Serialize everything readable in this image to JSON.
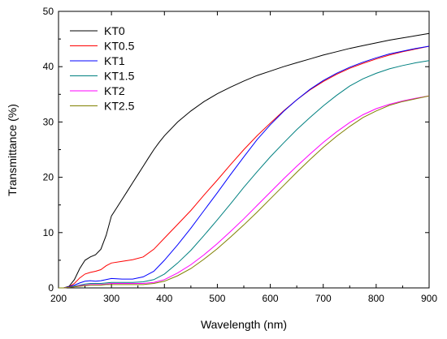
{
  "chart_data": {
    "type": "line",
    "xlabel": "Wavelength (nm)",
    "ylabel": "Transmittance (%)",
    "xlim": [
      200,
      900
    ],
    "ylim": [
      0,
      50
    ],
    "x_ticks": [
      200,
      300,
      400,
      500,
      600,
      700,
      800,
      900
    ],
    "y_ticks": [
      0,
      10,
      20,
      30,
      40,
      50
    ],
    "grid": false,
    "legend_position": "top-left",
    "series": [
      {
        "name": "KT0",
        "color": "#000000",
        "points": [
          [
            200,
            0
          ],
          [
            210,
            0
          ],
          [
            220,
            0.3
          ],
          [
            230,
            1.5
          ],
          [
            240,
            3.5
          ],
          [
            250,
            5.0
          ],
          [
            260,
            5.6
          ],
          [
            270,
            6.0
          ],
          [
            280,
            7.0
          ],
          [
            290,
            9.5
          ],
          [
            300,
            13.0
          ],
          [
            310,
            14.5
          ],
          [
            320,
            16.0
          ],
          [
            330,
            17.5
          ],
          [
            340,
            19.0
          ],
          [
            350,
            20.5
          ],
          [
            360,
            22.0
          ],
          [
            370,
            23.5
          ],
          [
            380,
            25.0
          ],
          [
            390,
            26.3
          ],
          [
            400,
            27.5
          ],
          [
            425,
            30.0
          ],
          [
            450,
            32.0
          ],
          [
            475,
            33.7
          ],
          [
            500,
            35.1
          ],
          [
            525,
            36.3
          ],
          [
            550,
            37.4
          ],
          [
            575,
            38.4
          ],
          [
            600,
            39.2
          ],
          [
            625,
            40.0
          ],
          [
            650,
            40.7
          ],
          [
            675,
            41.4
          ],
          [
            700,
            42.1
          ],
          [
            725,
            42.7
          ],
          [
            750,
            43.3
          ],
          [
            775,
            43.8
          ],
          [
            800,
            44.3
          ],
          [
            825,
            44.8
          ],
          [
            850,
            45.2
          ],
          [
            875,
            45.6
          ],
          [
            900,
            46.0
          ]
        ]
      },
      {
        "name": "KT0.5",
        "color": "#ff0000",
        "points": [
          [
            200,
            0
          ],
          [
            210,
            0
          ],
          [
            220,
            0.2
          ],
          [
            230,
            0.8
          ],
          [
            240,
            1.8
          ],
          [
            250,
            2.5
          ],
          [
            260,
            2.8
          ],
          [
            270,
            3.0
          ],
          [
            280,
            3.3
          ],
          [
            290,
            4.0
          ],
          [
            300,
            4.5
          ],
          [
            320,
            4.8
          ],
          [
            340,
            5.1
          ],
          [
            360,
            5.6
          ],
          [
            380,
            7.0
          ],
          [
            400,
            9.0
          ],
          [
            425,
            11.5
          ],
          [
            450,
            14.0
          ],
          [
            475,
            16.8
          ],
          [
            500,
            19.5
          ],
          [
            525,
            22.3
          ],
          [
            550,
            25.0
          ],
          [
            575,
            27.5
          ],
          [
            600,
            29.8
          ],
          [
            625,
            32.0
          ],
          [
            650,
            34.0
          ],
          [
            675,
            35.8
          ],
          [
            700,
            37.3
          ],
          [
            725,
            38.6
          ],
          [
            750,
            39.7
          ],
          [
            775,
            40.6
          ],
          [
            800,
            41.4
          ],
          [
            825,
            42.1
          ],
          [
            850,
            42.7
          ],
          [
            875,
            43.2
          ],
          [
            900,
            43.7
          ]
        ]
      },
      {
        "name": "KT1",
        "color": "#0000ff",
        "points": [
          [
            200,
            0
          ],
          [
            210,
            0
          ],
          [
            220,
            0.2
          ],
          [
            230,
            0.5
          ],
          [
            240,
            0.9
          ],
          [
            250,
            1.2
          ],
          [
            260,
            1.3
          ],
          [
            270,
            1.2
          ],
          [
            280,
            1.3
          ],
          [
            290,
            1.5
          ],
          [
            300,
            1.7
          ],
          [
            320,
            1.6
          ],
          [
            340,
            1.6
          ],
          [
            360,
            2.0
          ],
          [
            380,
            3.0
          ],
          [
            400,
            5.0
          ],
          [
            425,
            7.8
          ],
          [
            450,
            10.8
          ],
          [
            475,
            14.0
          ],
          [
            500,
            17.2
          ],
          [
            525,
            20.5
          ],
          [
            550,
            23.7
          ],
          [
            575,
            26.8
          ],
          [
            600,
            29.5
          ],
          [
            625,
            31.9
          ],
          [
            650,
            34.0
          ],
          [
            675,
            35.9
          ],
          [
            700,
            37.5
          ],
          [
            725,
            38.8
          ],
          [
            750,
            39.9
          ],
          [
            775,
            40.8
          ],
          [
            800,
            41.6
          ],
          [
            825,
            42.3
          ],
          [
            850,
            42.8
          ],
          [
            875,
            43.3
          ],
          [
            900,
            43.7
          ]
        ]
      },
      {
        "name": "KT1.5",
        "color": "#008080",
        "points": [
          [
            200,
            0
          ],
          [
            210,
            0
          ],
          [
            220,
            0.1
          ],
          [
            230,
            0.3
          ],
          [
            240,
            0.5
          ],
          [
            250,
            0.7
          ],
          [
            260,
            0.8
          ],
          [
            270,
            0.8
          ],
          [
            280,
            0.8
          ],
          [
            290,
            0.9
          ],
          [
            300,
            1.0
          ],
          [
            320,
            1.0
          ],
          [
            340,
            1.0
          ],
          [
            360,
            1.1
          ],
          [
            380,
            1.5
          ],
          [
            400,
            2.5
          ],
          [
            425,
            4.5
          ],
          [
            450,
            6.8
          ],
          [
            475,
            9.5
          ],
          [
            500,
            12.3
          ],
          [
            525,
            15.2
          ],
          [
            550,
            18.2
          ],
          [
            575,
            21.0
          ],
          [
            600,
            23.7
          ],
          [
            625,
            26.2
          ],
          [
            650,
            28.6
          ],
          [
            675,
            30.8
          ],
          [
            700,
            32.9
          ],
          [
            725,
            34.8
          ],
          [
            750,
            36.5
          ],
          [
            775,
            37.8
          ],
          [
            800,
            38.8
          ],
          [
            825,
            39.6
          ],
          [
            850,
            40.2
          ],
          [
            875,
            40.7
          ],
          [
            900,
            41.1
          ]
        ]
      },
      {
        "name": "KT2",
        "color": "#ff00ff",
        "points": [
          [
            200,
            0
          ],
          [
            210,
            0
          ],
          [
            220,
            0.1
          ],
          [
            230,
            0.2
          ],
          [
            240,
            0.4
          ],
          [
            250,
            0.5
          ],
          [
            260,
            0.6
          ],
          [
            270,
            0.6
          ],
          [
            280,
            0.6
          ],
          [
            290,
            0.7
          ],
          [
            300,
            0.8
          ],
          [
            320,
            0.8
          ],
          [
            340,
            0.8
          ],
          [
            360,
            0.8
          ],
          [
            380,
            1.0
          ],
          [
            400,
            1.5
          ],
          [
            425,
            2.7
          ],
          [
            450,
            4.2
          ],
          [
            475,
            6.0
          ],
          [
            500,
            8.0
          ],
          [
            525,
            10.2
          ],
          [
            550,
            12.5
          ],
          [
            575,
            14.9
          ],
          [
            600,
            17.3
          ],
          [
            625,
            19.7
          ],
          [
            650,
            22.0
          ],
          [
            675,
            24.2
          ],
          [
            700,
            26.3
          ],
          [
            725,
            28.2
          ],
          [
            750,
            29.9
          ],
          [
            775,
            31.3
          ],
          [
            800,
            32.4
          ],
          [
            825,
            33.2
          ],
          [
            850,
            33.8
          ],
          [
            875,
            34.3
          ],
          [
            900,
            34.7
          ]
        ]
      },
      {
        "name": "KT2.5",
        "color": "#808000",
        "points": [
          [
            200,
            0
          ],
          [
            210,
            0
          ],
          [
            220,
            0.1
          ],
          [
            230,
            0.2
          ],
          [
            240,
            0.3
          ],
          [
            250,
            0.4
          ],
          [
            260,
            0.5
          ],
          [
            270,
            0.5
          ],
          [
            280,
            0.5
          ],
          [
            290,
            0.6
          ],
          [
            300,
            0.6
          ],
          [
            320,
            0.6
          ],
          [
            340,
            0.6
          ],
          [
            360,
            0.6
          ],
          [
            380,
            0.8
          ],
          [
            400,
            1.2
          ],
          [
            425,
            2.2
          ],
          [
            450,
            3.5
          ],
          [
            475,
            5.2
          ],
          [
            500,
            7.1
          ],
          [
            525,
            9.2
          ],
          [
            550,
            11.4
          ],
          [
            575,
            13.7
          ],
          [
            600,
            16.1
          ],
          [
            625,
            18.5
          ],
          [
            650,
            20.9
          ],
          [
            675,
            23.2
          ],
          [
            700,
            25.4
          ],
          [
            725,
            27.4
          ],
          [
            750,
            29.2
          ],
          [
            775,
            30.8
          ],
          [
            800,
            32.0
          ],
          [
            825,
            33.0
          ],
          [
            850,
            33.7
          ],
          [
            875,
            34.2
          ],
          [
            900,
            34.7
          ]
        ]
      }
    ]
  }
}
